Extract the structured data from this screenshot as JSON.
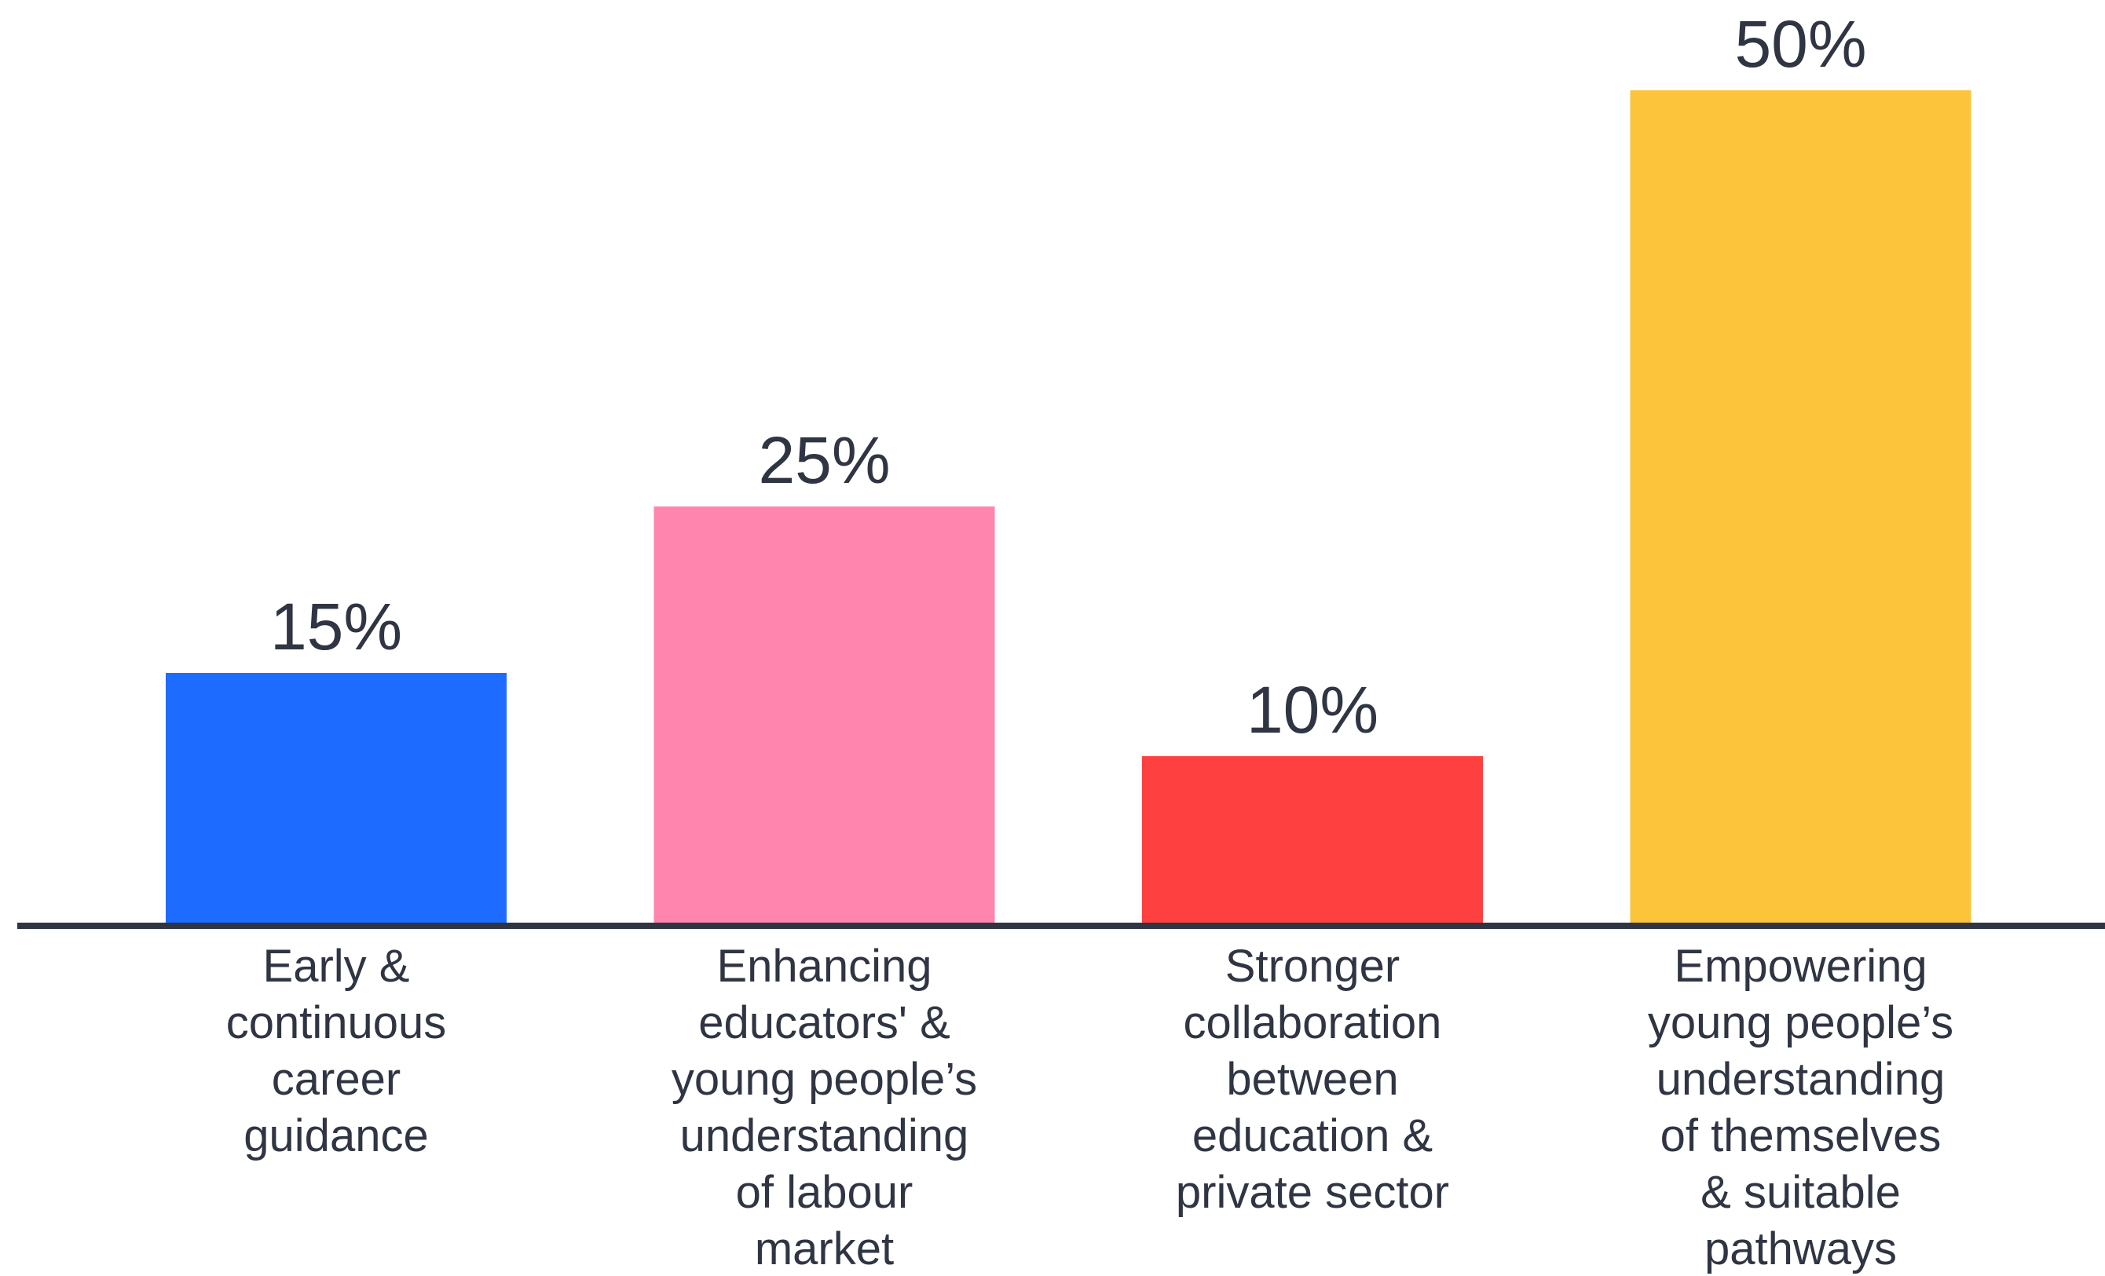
{
  "chart_data": {
    "type": "bar",
    "title": "",
    "xlabel": "",
    "ylabel": "",
    "ylim": [
      0,
      50
    ],
    "grid": false,
    "categories": [
      "Early & continuous career guidance",
      "Enhancing educators' & young people’s understanding of labour market",
      "Stronger collaboration between education & private sector",
      "Empowering young people’s understanding of themselves & suitable pathways"
    ],
    "category_label_lines": [
      [
        "Early &",
        "continuous",
        "career",
        "guidance"
      ],
      [
        "Enhancing",
        "educators' &",
        "young people’s",
        "understanding",
        "of labour",
        "market"
      ],
      [
        "Stronger",
        "collaboration",
        "between",
        "education &",
        "private sector"
      ],
      [
        "Empowering",
        "young people’s",
        "understanding",
        "of themselves",
        "& suitable",
        "pathways"
      ]
    ],
    "values": [
      15,
      25,
      10,
      50
    ],
    "value_labels": [
      "15%",
      "25%",
      "10%",
      "50%"
    ],
    "colors": [
      "#1e6bff",
      "#ff85ae",
      "#ff4040",
      "#fbc43b"
    ],
    "axis_color": "#2f3542"
  }
}
